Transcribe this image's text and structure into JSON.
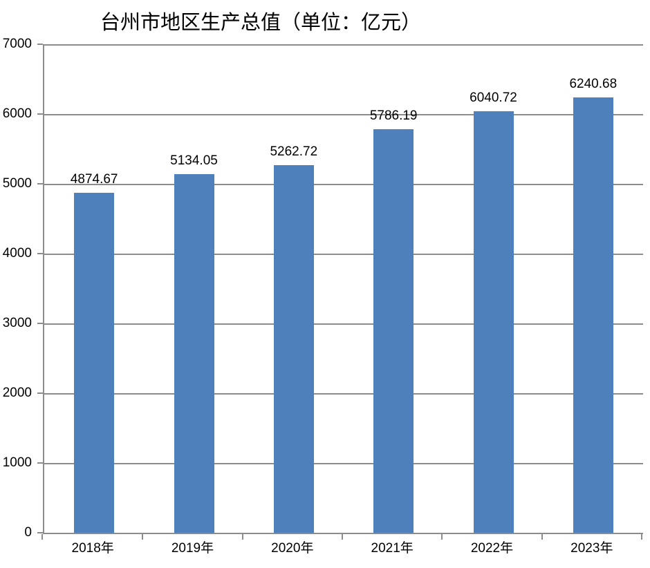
{
  "chart_data": {
    "type": "bar",
    "title": "台州市地区生产总值（单位：亿元）",
    "categories": [
      "2018年",
      "2019年",
      "2020年",
      "2021年",
      "2022年",
      "2023年"
    ],
    "values": [
      4874.67,
      5134.05,
      5262.72,
      5786.19,
      6040.72,
      6240.68
    ],
    "data_labels": [
      "4874.67",
      "5134.05",
      "5262.72",
      "5786.19",
      "6040.72",
      "6240.68"
    ],
    "xlabel": "",
    "ylabel": "",
    "ylim": [
      0,
      7000
    ],
    "ytick_step": 1000,
    "ytick_labels": [
      "0",
      "1000",
      "2000",
      "3000",
      "4000",
      "5000",
      "6000",
      "7000"
    ],
    "grid": true,
    "legend": "none",
    "colors": {
      "bar": "#4E80BC",
      "grid": "#8C8C8C",
      "axis": "#8C8C8C",
      "text": "#000000",
      "background": "#FFFFFF"
    }
  }
}
